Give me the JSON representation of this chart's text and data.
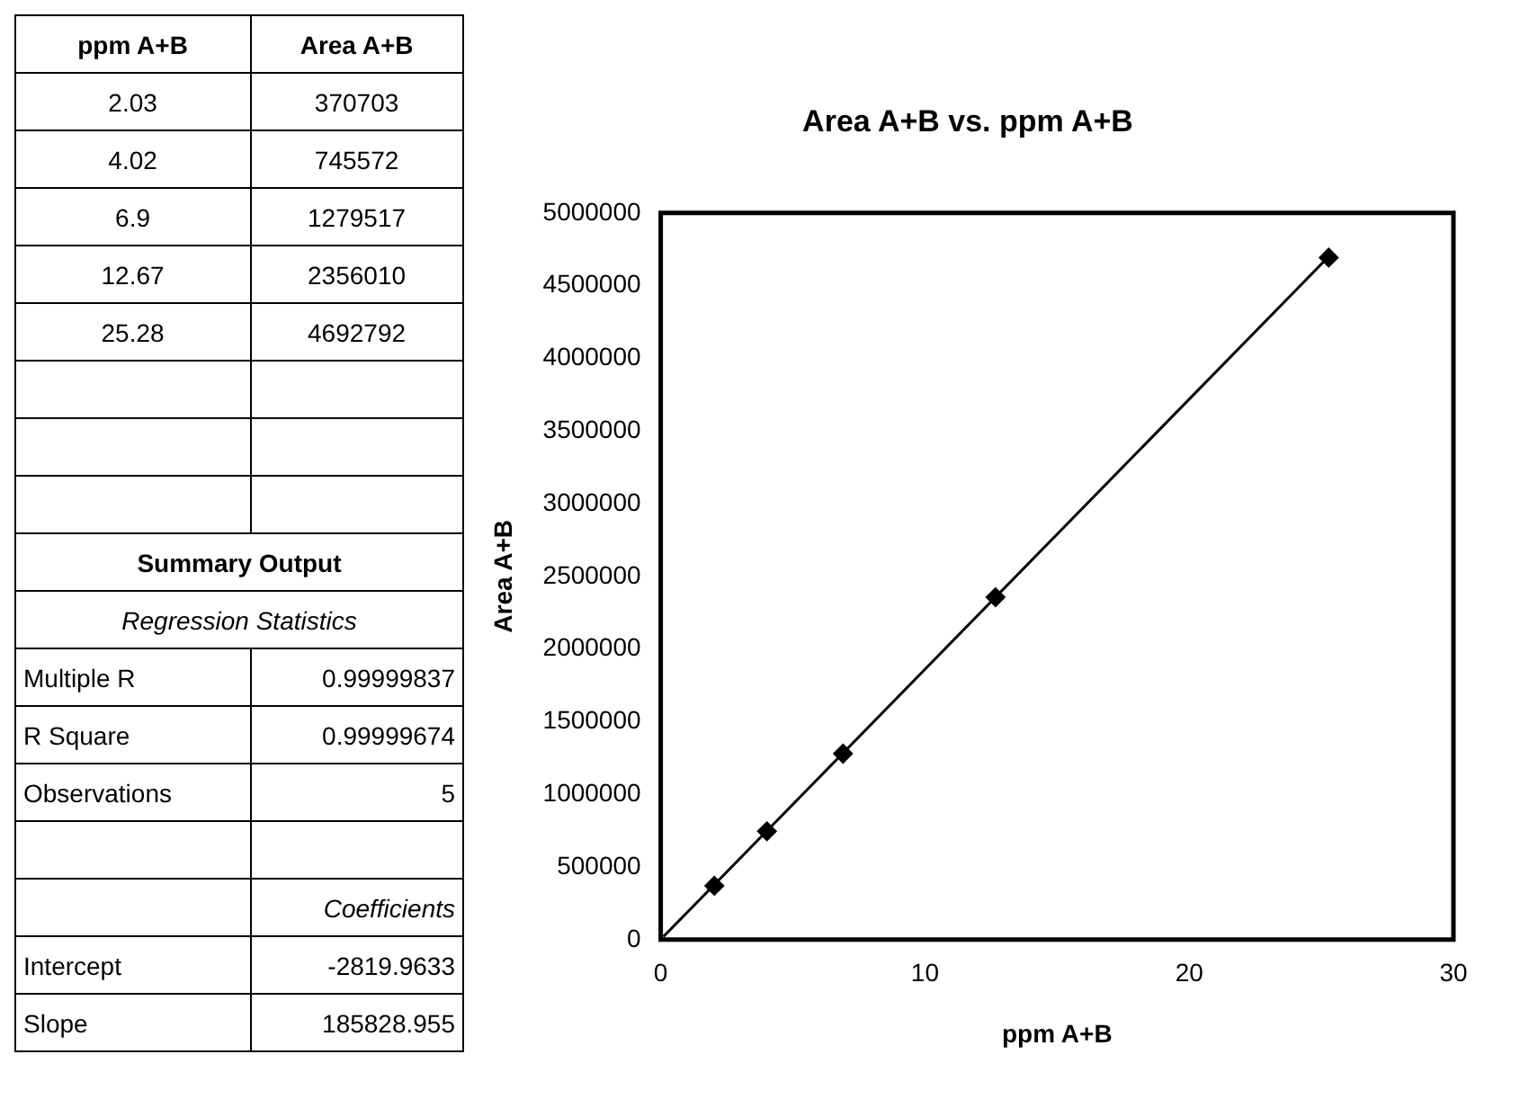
{
  "chart_data": {
    "type": "scatter",
    "title": "Area A+B vs. ppm A+B",
    "xlabel": "ppm A+B",
    "ylabel": "Area A+B",
    "series": [
      {
        "x": [
          2.03,
          4.02,
          6.9,
          12.67,
          25.28
        ],
        "values": [
          370703,
          745572,
          1279517,
          2356010,
          4692792
        ],
        "color": "#000000",
        "marker": "diamond"
      },
      {
        "type": "line",
        "x": [
          0.1,
          25.28
        ],
        "values": [
          20000,
          4700000
        ],
        "color": "#000000",
        "marker": "none",
        "line_style": "solid"
      }
    ],
    "xlim": [
      0,
      30
    ],
    "xticks": [
      0,
      10,
      20,
      30
    ],
    "ylim": [
      0,
      5000000
    ],
    "yticks": [
      0,
      500000,
      1000000,
      1500000,
      2000000,
      2500000,
      3000000,
      3500000,
      4000000,
      4500000,
      5000000
    ],
    "grid": false,
    "legend": false,
    "annotations": [
      "2.03",
      "370703",
      "4.02",
      "745572",
      "6.9",
      "1279517",
      "12.67",
      "2356010",
      "25.28",
      "4692792",
      "Summary Output",
      "Regression Statistics",
      "Multiple R",
      "0.99999837",
      "R Square",
      "0.99999674",
      "Observations",
      "5",
      "Coefficients",
      "Intercept",
      "-2819.9633",
      "Slope",
      "185828.955"
    ]
  }
}
